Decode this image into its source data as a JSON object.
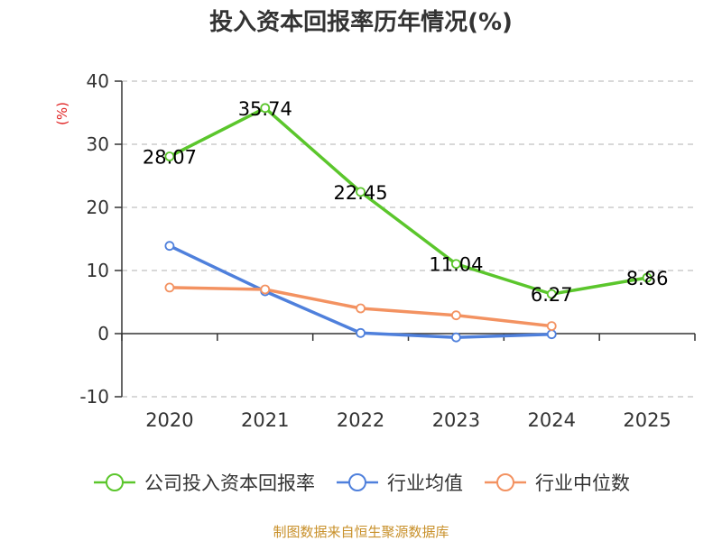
{
  "chart_data": {
    "type": "line",
    "title": "投入资本回报率历年情况(%)",
    "ylabel": "(%)",
    "xlabel": "",
    "categories": [
      "2020",
      "2021",
      "2022",
      "2023",
      "2024",
      "2025"
    ],
    "ylim": [
      -10,
      40
    ],
    "yticks": [
      40,
      30,
      20,
      10,
      0,
      -10
    ],
    "grid": true,
    "legend_position": "bottom",
    "series": [
      {
        "name": "公司投入资本回报率",
        "color": "#5bc62c",
        "values": [
          28.07,
          35.74,
          22.45,
          11.04,
          6.27,
          8.86
        ],
        "labels": [
          "28.07",
          "35.74",
          "22.45",
          "11.04",
          "6.27",
          "8.86"
        ]
      },
      {
        "name": "行业均值",
        "color": "#4f80dc",
        "values": [
          13.9,
          6.7,
          0.1,
          -0.6,
          -0.1,
          null
        ]
      },
      {
        "name": "行业中位数",
        "color": "#f39261",
        "values": [
          7.3,
          7.0,
          4.0,
          2.9,
          1.2,
          null
        ]
      }
    ]
  },
  "source": "制图数据来自恒生聚源数据库"
}
